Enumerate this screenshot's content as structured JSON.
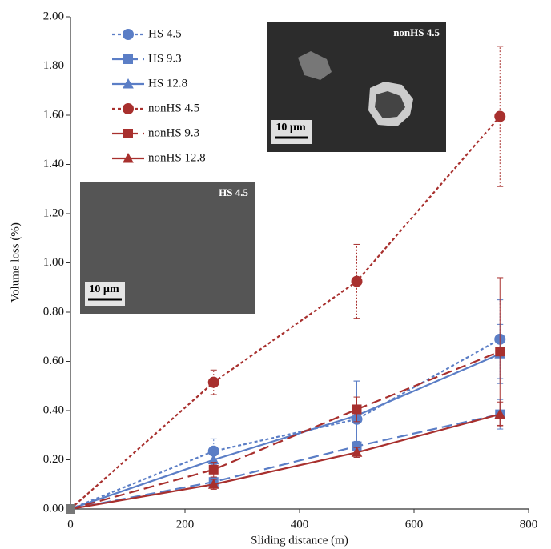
{
  "chart_data": {
    "type": "line",
    "x_label": "Sliding distance (m)",
    "y_label": "Volume loss (%)",
    "x": [
      0,
      250,
      500,
      750
    ],
    "series": [
      {
        "name": "HS 4.5",
        "color": "#5b7ec6",
        "dash": "dotted",
        "marker": "circle",
        "values": [
          0,
          0.235,
          0.365,
          0.69
        ],
        "errors": [
          0,
          0.05,
          0.155,
          0.16
        ]
      },
      {
        "name": "HS 9.3",
        "color": "#5b7ec6",
        "dash": "long-dash",
        "marker": "square",
        "values": [
          0,
          0.11,
          0.255,
          0.385
        ],
        "errors": [
          0,
          0.02,
          0.02,
          0.06
        ]
      },
      {
        "name": "HS 12.8",
        "color": "#5b7ec6",
        "dash": "solid",
        "marker": "triangle",
        "values": [
          0,
          0.2,
          0.38,
          0.63
        ],
        "errors": [
          0,
          0.02,
          0.14,
          0.12
        ]
      },
      {
        "name": "nonHS 4.5",
        "color": "#a8302e",
        "dash": "dotted",
        "marker": "circle",
        "values": [
          0,
          0.515,
          0.925,
          1.595
        ],
        "errors": [
          0,
          0.05,
          0.15,
          0.285
        ]
      },
      {
        "name": "nonHS 9.3",
        "color": "#a8302e",
        "dash": "long-dash",
        "marker": "square",
        "values": [
          0,
          0.16,
          0.405,
          0.64
        ],
        "errors": [
          0,
          0.03,
          0.05,
          0.3
        ]
      },
      {
        "name": "nonHS 12.8",
        "color": "#a8302e",
        "dash": "solid",
        "marker": "triangle",
        "values": [
          0,
          0.1,
          0.23,
          0.385
        ],
        "errors": [
          0,
          0.02,
          0.02,
          0.05
        ]
      }
    ],
    "xlim": [
      0,
      800
    ],
    "xticks": [
      0,
      200,
      400,
      600,
      800
    ],
    "ylim": [
      0,
      2
    ],
    "yticks": [
      {
        "value": 0,
        "label": "0.00"
      },
      {
        "value": 0.2,
        "label": "0.20"
      },
      {
        "value": 0.4,
        "label": "0.40"
      },
      {
        "value": 0.6,
        "label": "0.60"
      },
      {
        "value": 0.8,
        "label": "0.80"
      },
      {
        "value": 1.0,
        "label": "1.00"
      },
      {
        "value": 1.2,
        "label": "1.20"
      },
      {
        "value": 1.4,
        "label": "1.40"
      },
      {
        "value": 1.6,
        "label": "1.60"
      },
      {
        "value": 1.8,
        "label": "1.80"
      },
      {
        "value": 2.0,
        "label": "2.00"
      }
    ],
    "legend": "top-left",
    "insets": [
      {
        "label": "nonHS 4.5",
        "scale_bar": "10 µm"
      },
      {
        "label": "HS 4.5",
        "scale_bar": "10 µm"
      }
    ]
  }
}
